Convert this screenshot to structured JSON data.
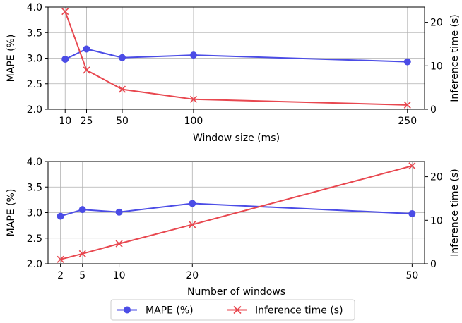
{
  "colors": {
    "mape": "#4b4ce6",
    "inference": "#e8474f"
  },
  "legend": {
    "placement": "bottom-center",
    "mape": "MAPE (%)",
    "inference": "Inference time (s)"
  },
  "chart_data": [
    {
      "type": "line",
      "xlabel": "Window size (ms)",
      "ylabel": "MAPE (%)",
      "y2label": "Inference time (s)",
      "x": [
        10,
        25,
        50,
        100,
        250
      ],
      "xticks": [
        "10",
        "25",
        "50",
        "100",
        "250"
      ],
      "xlim": [
        -2,
        262
      ],
      "ylim": [
        2.0,
        4.0
      ],
      "yticks": [
        "2.0",
        "2.5",
        "3.0",
        "3.5",
        "4.0"
      ],
      "y2lim": [
        0,
        23.5
      ],
      "y2ticks": [
        "0",
        "10",
        "20"
      ],
      "grid": true,
      "series": [
        {
          "name": "MAPE (%)",
          "axis": "left",
          "marker": "circle",
          "values": [
            2.98,
            3.18,
            3.01,
            3.06,
            2.93
          ]
        },
        {
          "name": "Inference time (s)",
          "axis": "right",
          "marker": "x",
          "values": [
            22.5,
            9.0,
            4.6,
            2.3,
            1.0
          ]
        }
      ]
    },
    {
      "type": "line",
      "xlabel": "Number of windows",
      "ylabel": "MAPE (%)",
      "y2label": "Inference time (s)",
      "x": [
        2,
        5,
        10,
        20,
        50
      ],
      "xticks": [
        "2",
        "5",
        "10",
        "20",
        "50"
      ],
      "xlim": [
        0.3,
        51.7
      ],
      "ylim": [
        2.0,
        4.0
      ],
      "yticks": [
        "2.0",
        "2.5",
        "3.0",
        "3.5",
        "4.0"
      ],
      "y2lim": [
        0,
        23.5
      ],
      "y2ticks": [
        "0",
        "10",
        "20"
      ],
      "grid": true,
      "series": [
        {
          "name": "MAPE (%)",
          "axis": "left",
          "marker": "circle",
          "values": [
            2.93,
            3.06,
            3.01,
            3.18,
            2.98
          ]
        },
        {
          "name": "Inference time (s)",
          "axis": "right",
          "marker": "x",
          "values": [
            1.0,
            2.3,
            4.6,
            9.0,
            22.5
          ]
        }
      ]
    }
  ]
}
